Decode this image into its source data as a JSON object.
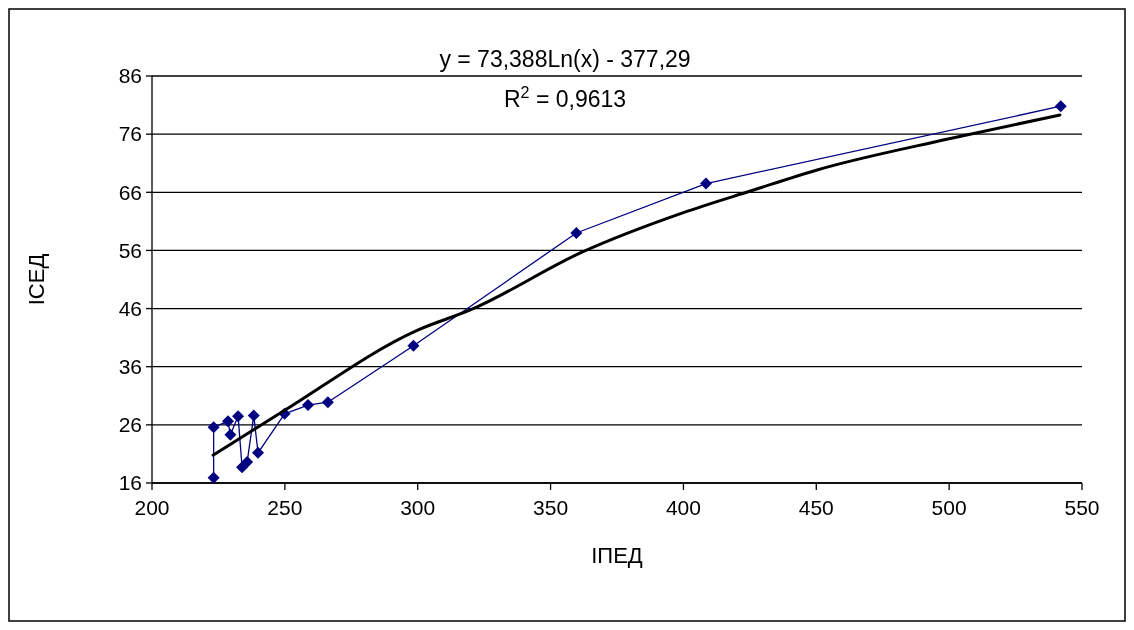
{
  "chart_data": {
    "type": "scatter",
    "xlabel": "IПЕД",
    "ylabel": "IСЕД",
    "xlim": [
      200,
      550
    ],
    "ylim": [
      16,
      86
    ],
    "xticks": [
      200,
      250,
      300,
      350,
      400,
      450,
      500,
      550
    ],
    "yticks": [
      16,
      26,
      36,
      46,
      56,
      66,
      76,
      86
    ],
    "grid": "y",
    "annotations": [
      "y = 73,388Ln(x) - 377,29",
      "R$^{2}$ = 0,9613"
    ],
    "series": [
      {
        "type": "line",
        "color": "#000080",
        "marker": "diamond",
        "line_style": "solid",
        "x": [
          223.2,
          223.2,
          228.6,
          229.5,
          232.4,
          233.9,
          235.8,
          238.3,
          239.9,
          249.9,
          258.7,
          266.2,
          298.4,
          359.7,
          408.5,
          542
        ],
        "values": [
          16.9,
          25.6,
          26.6,
          24.3,
          27.5,
          18.7,
          19.6,
          27.6,
          21.2,
          27.9,
          29.4,
          29.9,
          39.6,
          59,
          67.5,
          80.8
        ]
      },
      {
        "type": "line",
        "color": "#000000",
        "marker": "none",
        "line_style": "solid",
        "x": [
          223,
          248.9,
          300,
          320,
          361.8,
          400,
          425.8,
          450,
          500,
          541.7
        ],
        "values": [
          20.8,
          28.2,
          42.3,
          45.8,
          55.7,
          62.5,
          66.3,
          69.8,
          75.2,
          79.3
        ]
      }
    ]
  }
}
